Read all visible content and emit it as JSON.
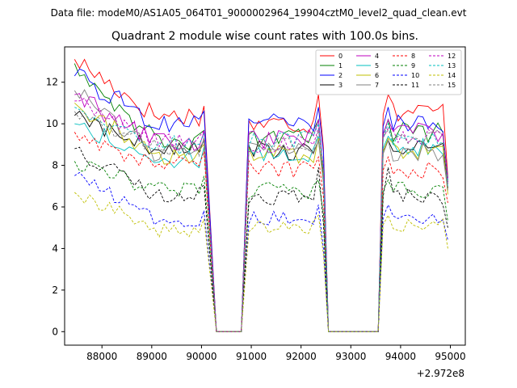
{
  "chart_data": {
    "type": "line",
    "suptitle": "Data file: modeM0/AS1A05_064T01_9000002964_19904cztM0_level2_quad_clean.evt",
    "title": "Quadrant 2 module wise count rates with 100.0s bins.",
    "xlabel": "",
    "ylabel": "",
    "x_offset_label": "+2.972e8",
    "xlim": [
      87250,
      95300
    ],
    "ylim": [
      -0.65,
      13.7
    ],
    "x_ticks": [
      88000,
      89000,
      90000,
      91000,
      92000,
      93000,
      94000,
      95000
    ],
    "x_tick_labels": [
      "88000",
      "89000",
      "90000",
      "91000",
      "92000",
      "93000",
      "94000",
      "95000"
    ],
    "y_ticks": [
      0,
      2,
      4,
      6,
      8,
      10,
      12
    ],
    "y_tick_labels": [
      "0",
      "2",
      "4",
      "6",
      "8",
      "10",
      "12"
    ],
    "legend_position": "top-right",
    "legend_columns": 4,
    "gaps": [
      {
        "down_start": 90050,
        "zero_start": 90300,
        "zero_end": 90800,
        "up_end": 90950
      },
      {
        "down_start": 92400,
        "zero_start": 92550,
        "zero_end": 93550,
        "up_end": 93650
      }
    ],
    "segments": [
      {
        "x_start": 87450,
        "x_end": 90050
      },
      {
        "x_start": 90950,
        "x_end": 92400
      },
      {
        "x_start": 93650,
        "x_end": 94950
      }
    ],
    "series": [
      {
        "name": "0",
        "color": "#ff0000",
        "dashed": false,
        "start": 13.1,
        "level": 10.4,
        "seg2": 10.0,
        "seg3": 10.6,
        "peak": 11.4,
        "end": 7.4
      },
      {
        "name": "1",
        "color": "#008000",
        "dashed": false,
        "start": 12.9,
        "level": 9.2,
        "seg2": 9.3,
        "seg3": 9.6,
        "peak": 10.2,
        "end": 7.2
      },
      {
        "name": "2",
        "color": "#0000ff",
        "dashed": false,
        "start": 12.3,
        "level": 10.1,
        "seg2": 10.0,
        "seg3": 10.0,
        "peak": 10.8,
        "end": 7.3
      },
      {
        "name": "3",
        "color": "#000000",
        "dashed": false,
        "start": 10.4,
        "level": 8.7,
        "seg2": 8.7,
        "seg3": 8.8,
        "peak": 9.2,
        "end": 6.9
      },
      {
        "name": "4",
        "color": "#bf00bf",
        "dashed": false,
        "start": 11.4,
        "level": 9.1,
        "seg2": 9.3,
        "seg3": 9.6,
        "peak": 10.2,
        "end": 7.1
      },
      {
        "name": "5",
        "color": "#00bfbf",
        "dashed": false,
        "start": 10.0,
        "level": 8.3,
        "seg2": 8.5,
        "seg3": 8.9,
        "peak": 9.4,
        "end": 7.0
      },
      {
        "name": "6",
        "color": "#bfbf00",
        "dashed": false,
        "start": 11.0,
        "level": 8.4,
        "seg2": 8.5,
        "seg3": 8.7,
        "peak": 9.3,
        "end": 6.6
      },
      {
        "name": "7",
        "color": "#808080",
        "dashed": false,
        "start": 11.6,
        "level": 8.6,
        "seg2": 8.7,
        "seg3": 8.6,
        "peak": 9.2,
        "end": 6.8
      },
      {
        "name": "8",
        "color": "#ff0000",
        "dashed": true,
        "start": 9.6,
        "level": 8.0,
        "seg2": 7.8,
        "seg3": 7.8,
        "peak": 8.4,
        "end": 6.2
      },
      {
        "name": "9",
        "color": "#008000",
        "dashed": true,
        "start": 8.2,
        "level": 6.8,
        "seg2": 6.8,
        "seg3": 6.8,
        "peak": 7.3,
        "end": 5.3
      },
      {
        "name": "10",
        "color": "#0000ff",
        "dashed": true,
        "start": 7.5,
        "level": 5.4,
        "seg2": 5.5,
        "seg3": 5.5,
        "peak": 6.1,
        "end": 4.4
      },
      {
        "name": "11",
        "color": "#000000",
        "dashed": true,
        "start": 8.8,
        "level": 6.6,
        "seg2": 6.5,
        "seg3": 6.5,
        "peak": 7.9,
        "end": 5.0
      },
      {
        "name": "12",
        "color": "#bf00bf",
        "dashed": true,
        "start": 11.1,
        "level": 9.2,
        "seg2": 9.0,
        "seg3": 9.3,
        "peak": 9.8,
        "end": 7.2
      },
      {
        "name": "13",
        "color": "#00bfbf",
        "dashed": true,
        "start": 10.8,
        "level": 9.0,
        "seg2": 9.2,
        "seg3": 9.3,
        "peak": 10.0,
        "end": 7.3
      },
      {
        "name": "14",
        "color": "#bfbf00",
        "dashed": true,
        "start": 6.7,
        "level": 4.9,
        "seg2": 5.0,
        "seg3": 5.1,
        "peak": 5.6,
        "end": 4.0
      },
      {
        "name": "15",
        "color": "#808080",
        "dashed": true,
        "start": 10.6,
        "level": 8.8,
        "seg2": 8.9,
        "seg3": 9.3,
        "peak": 9.7,
        "end": 7.1
      }
    ]
  }
}
